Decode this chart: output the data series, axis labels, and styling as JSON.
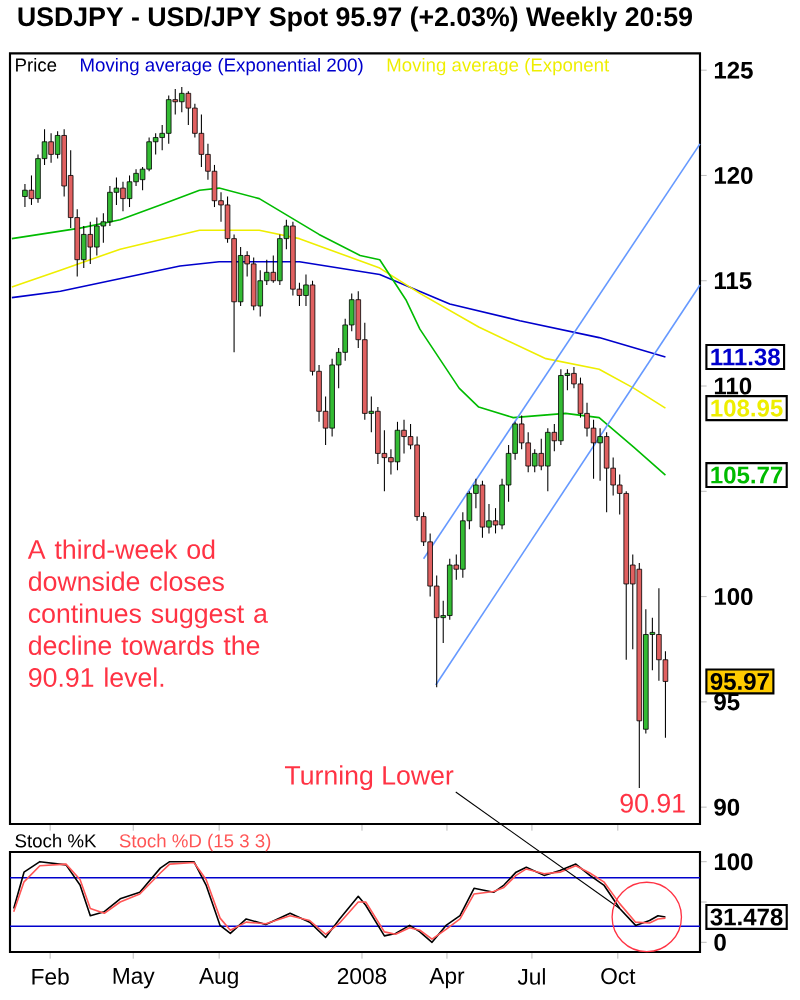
{
  "chart_data": [
    {
      "type": "candlestick",
      "title": "USDJPY - USD/JPY Spot 95.97 (+2.03%) Weekly 20:59",
      "xlim": [
        "2006-12-20",
        "2008-12-28"
      ],
      "ylim": [
        89.2,
        125.8
      ],
      "tick_labels": "y",
      "legend": "top left",
      "xticks": [
        {
          "value": "2007-02-01",
          "label": null
        },
        {
          "value": "2007-05-01",
          "label": null
        },
        {
          "value": "2007-08-01",
          "label": null
        },
        {
          "value": "2008-01-01",
          "label": null
        },
        {
          "value": "2008-04-01",
          "label": null
        },
        {
          "value": "2008-07-01",
          "label": null
        },
        {
          "value": "2008-10-01",
          "label": null
        }
      ],
      "yticks": [
        90,
        95,
        100,
        {
          "value": 105,
          "label": null
        },
        110,
        115,
        120,
        125
      ],
      "series": [
        {
          "type": "candlestick",
          "name": "Price",
          "x": [
            "2007-01-05",
            "2007-01-12",
            "2007-01-19",
            "2007-01-26",
            "2007-02-02",
            "2007-02-09",
            "2007-02-16",
            "2007-02-23",
            "2007-03-02",
            "2007-03-09",
            "2007-03-16",
            "2007-03-23",
            "2007-03-30",
            "2007-04-06",
            "2007-04-13",
            "2007-04-20",
            "2007-04-27",
            "2007-05-04",
            "2007-05-11",
            "2007-05-18",
            "2007-05-25",
            "2007-06-01",
            "2007-06-08",
            "2007-06-15",
            "2007-06-22",
            "2007-06-29",
            "2007-07-06",
            "2007-07-13",
            "2007-07-20",
            "2007-07-27",
            "2007-08-03",
            "2007-08-10",
            "2007-08-17",
            "2007-08-24",
            "2007-08-31",
            "2007-09-07",
            "2007-09-14",
            "2007-09-21",
            "2007-09-28",
            "2007-10-05",
            "2007-10-12",
            "2007-10-19",
            "2007-10-26",
            "2007-11-02",
            "2007-11-09",
            "2007-11-16",
            "2007-11-23",
            "2007-11-30",
            "2007-12-07",
            "2007-12-14",
            "2007-12-21",
            "2007-12-28",
            "2008-01-04",
            "2008-01-11",
            "2008-01-18",
            "2008-01-25",
            "2008-02-01",
            "2008-02-08",
            "2008-02-15",
            "2008-02-22",
            "2008-02-29",
            "2008-03-07",
            "2008-03-14",
            "2008-03-21",
            "2008-03-28",
            "2008-04-04",
            "2008-04-11",
            "2008-04-18",
            "2008-04-25",
            "2008-05-02",
            "2008-05-09",
            "2008-05-16",
            "2008-05-23",
            "2008-05-30",
            "2008-06-06",
            "2008-06-13",
            "2008-06-20",
            "2008-06-27",
            "2008-07-04",
            "2008-07-11",
            "2008-07-18",
            "2008-07-25",
            "2008-08-01",
            "2008-08-08",
            "2008-08-15",
            "2008-08-22",
            "2008-08-29",
            "2008-09-05",
            "2008-09-12",
            "2008-09-19",
            "2008-09-26",
            "2008-10-03",
            "2008-10-10",
            "2008-10-17",
            "2008-10-24",
            "2008-10-31",
            "2008-11-07",
            "2008-11-14",
            "2008-11-21"
          ],
          "ohlc": [
            [
              119.0,
              119.6,
              118.5,
              119.3
            ],
            [
              119.3,
              120.0,
              118.6,
              118.9
            ],
            [
              118.9,
              121.0,
              118.7,
              120.8
            ],
            [
              120.8,
              122.2,
              120.5,
              121.6
            ],
            [
              121.6,
              122.0,
              120.6,
              121.0
            ],
            [
              121.0,
              122.1,
              120.8,
              121.9
            ],
            [
              121.9,
              122.2,
              119.0,
              119.5
            ],
            [
              120.0,
              121.2,
              117.5,
              118.0
            ],
            [
              118.0,
              118.4,
              115.2,
              116.0
            ],
            [
              116.0,
              117.6,
              115.6,
              117.2
            ],
            [
              117.2,
              117.8,
              115.8,
              116.6
            ],
            [
              116.6,
              118.0,
              116.2,
              117.6
            ],
            [
              117.6,
              118.2,
              116.8,
              117.8
            ],
            [
              117.8,
              119.5,
              117.6,
              119.2
            ],
            [
              119.2,
              119.9,
              118.6,
              119.4
            ],
            [
              119.4,
              119.7,
              118.3,
              118.9
            ],
            [
              118.9,
              120.0,
              118.5,
              119.7
            ],
            [
              119.7,
              120.3,
              119.5,
              120.1
            ],
            [
              119.8,
              120.4,
              119.3,
              120.3
            ],
            [
              120.3,
              121.8,
              120.2,
              121.6
            ],
            [
              121.6,
              122.0,
              121.0,
              121.8
            ],
            [
              121.8,
              122.4,
              121.2,
              122.0
            ],
            [
              122.0,
              123.8,
              121.5,
              123.6
            ],
            [
              123.6,
              124.1,
              122.9,
              123.5
            ],
            [
              123.5,
              124.2,
              123.0,
              123.9
            ],
            [
              123.9,
              124.0,
              122.4,
              123.2
            ],
            [
              123.2,
              123.4,
              121.8,
              122.0
            ],
            [
              122.0,
              122.9,
              120.4,
              121.0
            ],
            [
              121.0,
              121.5,
              119.8,
              120.2
            ],
            [
              120.2,
              120.5,
              118.5,
              118.8
            ],
            [
              118.8,
              119.2,
              117.8,
              118.6
            ],
            [
              118.6,
              119.0,
              116.8,
              117.0
            ],
            [
              117.0,
              117.2,
              111.6,
              114.0
            ],
            [
              114.0,
              116.6,
              113.8,
              116.2
            ],
            [
              116.2,
              116.4,
              115.2,
              115.8
            ],
            [
              115.8,
              116.1,
              113.6,
              113.8
            ],
            [
              113.8,
              115.5,
              113.3,
              115.0
            ],
            [
              115.0,
              116.0,
              114.8,
              115.4
            ],
            [
              115.4,
              116.2,
              114.9,
              115.0
            ],
            [
              115.0,
              117.2,
              114.8,
              117.0
            ],
            [
              117.0,
              117.9,
              116.5,
              117.6
            ],
            [
              117.6,
              117.8,
              114.3,
              114.6
            ],
            [
              114.6,
              114.9,
              113.8,
              114.3
            ],
            [
              114.3,
              115.3,
              113.8,
              114.8
            ],
            [
              114.8,
              115.0,
              110.5,
              110.7
            ],
            [
              110.7,
              111.0,
              108.3,
              108.8
            ],
            [
              108.8,
              109.5,
              107.2,
              108.0
            ],
            [
              108.0,
              111.3,
              107.6,
              111.0
            ],
            [
              111.0,
              111.8,
              109.9,
              111.6
            ],
            [
              111.6,
              113.2,
              111.2,
              112.9
            ],
            [
              112.9,
              114.4,
              112.6,
              114.1
            ],
            [
              114.1,
              114.5,
              111.8,
              112.2
            ],
            [
              112.2,
              113.0,
              108.4,
              108.7
            ],
            [
              108.7,
              109.5,
              107.8,
              108.8
            ],
            [
              108.8,
              109.0,
              106.3,
              106.8
            ],
            [
              106.8,
              107.9,
              105.0,
              106.6
            ],
            [
              106.6,
              107.0,
              105.8,
              106.4
            ],
            [
              106.4,
              108.3,
              106.0,
              107.9
            ],
            [
              107.9,
              108.4,
              106.8,
              107.6
            ],
            [
              107.6,
              108.2,
              107.0,
              107.2
            ],
            [
              107.2,
              107.6,
              103.6,
              103.8
            ],
            [
              103.8,
              104.0,
              102.4,
              102.6
            ],
            [
              102.6,
              103.0,
              100.0,
              100.5
            ],
            [
              100.5,
              101.0,
              95.7,
              99.0
            ],
            [
              99.0,
              99.8,
              97.8,
              99.1
            ],
            [
              99.1,
              101.8,
              98.9,
              101.5
            ],
            [
              101.5,
              102.0,
              100.8,
              101.3
            ],
            [
              101.3,
              104.0,
              100.9,
              103.6
            ],
            [
              103.6,
              105.0,
              103.2,
              104.9
            ],
            [
              104.9,
              105.6,
              104.2,
              105.3
            ],
            [
              105.3,
              105.5,
              102.8,
              103.3
            ],
            [
              103.3,
              104.4,
              103.0,
              103.6
            ],
            [
              103.6,
              104.2,
              103.0,
              103.4
            ],
            [
              103.4,
              105.6,
              103.2,
              105.3
            ],
            [
              105.3,
              107.2,
              104.5,
              106.8
            ],
            [
              106.8,
              108.3,
              106.5,
              108.2
            ],
            [
              108.2,
              108.6,
              107.0,
              107.3
            ],
            [
              107.3,
              107.8,
              105.9,
              106.2
            ],
            [
              106.2,
              107.0,
              105.9,
              106.8
            ],
            [
              106.8,
              107.5,
              106.0,
              106.2
            ],
            [
              106.2,
              108.0,
              105.0,
              107.8
            ],
            [
              107.8,
              108.2,
              106.9,
              107.4
            ],
            [
              107.4,
              110.8,
              107.2,
              110.5
            ],
            [
              110.5,
              110.8,
              109.8,
              110.6
            ],
            [
              110.6,
              110.9,
              109.9,
              110.1
            ],
            [
              110.1,
              110.4,
              108.5,
              108.7
            ],
            [
              108.7,
              109.2,
              107.6,
              108.0
            ],
            [
              108.0,
              108.4,
              105.6,
              107.3
            ],
            [
              107.3,
              108.0,
              105.5,
              107.6
            ],
            [
              107.6,
              107.8,
              104.0,
              106.1
            ],
            [
              106.1,
              106.6,
              104.8,
              105.3
            ],
            [
              105.3,
              105.8,
              103.9,
              104.9
            ],
            [
              104.9,
              105.0,
              97.0,
              100.6
            ],
            [
              101.5,
              102.0,
              97.5,
              100.6
            ],
            [
              101.3,
              101.6,
              90.91,
              94.1
            ],
            [
              93.7,
              99.4,
              93.5,
              98.2
            ],
            [
              98.2,
              99.0,
              96.5,
              98.3
            ],
            [
              98.2,
              100.4,
              96.0,
              97.0
            ],
            [
              97.0,
              97.4,
              93.3,
              95.97
            ]
          ],
          "colors": [
            "#33bb33",
            "#e06060",
            "#33bb33",
            "#33bb33",
            "#e06060",
            "#33bb33",
            "#e06060",
            "#e06060",
            "#e06060",
            "#33bb33",
            "#e06060",
            "#33bb33",
            "#33bb33",
            "#33bb33",
            "#33bb33",
            "#e06060",
            "#33bb33",
            "#33bb33",
            "#33bb33",
            "#33bb33",
            "#33bb33",
            "#33bb33",
            "#33bb33",
            "#e06060",
            "#33bb33",
            "#e06060",
            "#e06060",
            "#e06060",
            "#e06060",
            "#e06060",
            "#e06060",
            "#e06060",
            "#e06060",
            "#33bb33",
            "#e06060",
            "#e06060",
            "#33bb33",
            "#33bb33",
            "#e06060",
            "#33bb33",
            "#33bb33",
            "#e06060",
            "#e06060",
            "#33bb33",
            "#e06060",
            "#e06060",
            "#e06060",
            "#33bb33",
            "#33bb33",
            "#33bb33",
            "#33bb33",
            "#e06060",
            "#e06060",
            "#33bb33",
            "#e06060",
            "#e06060",
            "#e06060",
            "#33bb33",
            "#e06060",
            "#e06060",
            "#e06060",
            "#e06060",
            "#e06060",
            "#e06060",
            "#33bb33",
            "#33bb33",
            "#e06060",
            "#33bb33",
            "#33bb33",
            "#33bb33",
            "#e06060",
            "#33bb33",
            "#e06060",
            "#33bb33",
            "#33bb33",
            "#33bb33",
            "#e06060",
            "#e06060",
            "#33bb33",
            "#e06060",
            "#33bb33",
            "#e06060",
            "#33bb33",
            "#33bb33",
            "#e06060",
            "#e06060",
            "#e06060",
            "#e06060",
            "#33bb33",
            "#e06060",
            "#e06060",
            "#e06060",
            "#e06060",
            "#e06060",
            "#e06060",
            "#33bb33",
            "#33bb33",
            "#e06060",
            "#e06060"
          ]
        },
        {
          "type": "line",
          "name": "Moving average (Exponential 200)",
          "color": "#0000cc",
          "x": [
            "2006-12-22",
            "2007-02-12",
            "2007-04-17",
            "2007-06-20",
            "2007-08-01",
            "2007-10-26",
            "2007-12-08",
            "2008-01-20",
            "2008-04-04",
            "2008-06-18",
            "2008-09-11",
            "2008-11-21"
          ],
          "values": [
            114.2,
            114.5,
            115.1,
            115.7,
            115.9,
            115.9,
            115.6,
            115.3,
            113.9,
            113.1,
            112.3,
            111.38
          ]
        },
        {
          "type": "line",
          "name": "Moving average (Exponent",
          "color": "#eeee00",
          "x": [
            "2006-12-22",
            "2007-02-12",
            "2007-04-17",
            "2007-07-11",
            "2007-09-13",
            "2007-10-26",
            "2008-01-20",
            "2008-03-03",
            "2008-05-05",
            "2008-07-16",
            "2008-09-11",
            "2008-10-18",
            "2008-11-21"
          ],
          "values": [
            114.7,
            115.5,
            116.5,
            117.4,
            117.4,
            117.0,
            115.6,
            114.4,
            112.8,
            111.3,
            110.8,
            109.9,
            108.95
          ]
        },
        {
          "type": "line",
          "color": "#00bb00",
          "x": [
            "2006-12-22",
            "2007-03-05",
            "2007-04-17",
            "2007-05-30",
            "2007-07-11",
            "2007-08-01",
            "2007-09-13",
            "2007-11-16",
            "2007-12-30",
            "2008-01-20",
            "2008-02-17",
            "2008-03-03",
            "2008-04-14",
            "2008-05-05",
            "2008-06-11",
            "2008-08-06",
            "2008-09-11",
            "2008-10-18",
            "2008-11-21"
          ],
          "values": [
            117.0,
            117.5,
            117.9,
            118.6,
            119.3,
            119.4,
            118.9,
            117.2,
            116.2,
            116.0,
            114.1,
            112.7,
            109.9,
            109.0,
            108.5,
            108.7,
            108.5,
            107.1,
            105.77
          ]
        },
        {
          "type": "line",
          "color": "#6699ff",
          "x": [
            "2008-03-07",
            "2008-12-28"
          ],
          "values": [
            101.8,
            121.5
          ]
        },
        {
          "type": "line",
          "color": "#6699ff",
          "x": [
            "2008-03-20",
            "2008-12-28"
          ],
          "values": [
            95.8,
            114.8
          ]
        }
      ],
      "annotations": [
        "A third-week od downside closes continues suggest a decline towards the 90.91 level.",
        {
          "text": "90.91",
          "x": "2008-10-24",
          "y": 90.91
        },
        {
          "text": "95.97",
          "x": "2008-11-21",
          "y": 95.97
        },
        {
          "text": "111.38",
          "x": "2008-11-21",
          "y": 111.38
        },
        {
          "text": "108.95",
          "x": "2008-11-21",
          "y": 108.95
        },
        {
          "text": "105.77",
          "x": "2008-11-21",
          "y": 105.77
        }
      ]
    },
    {
      "type": "line",
      "xlim": [
        "2006-12-20",
        "2008-12-28"
      ],
      "ylim": [
        -12,
        112
      ],
      "legend": "top left",
      "xticks": [
        {
          "value": "2007-02-01",
          "label": "Feb"
        },
        {
          "value": "2007-05-01",
          "label": "May"
        },
        {
          "value": "2007-08-01",
          "label": "Aug"
        },
        {
          "value": "2008-01-01",
          "label": "2008"
        },
        {
          "value": "2008-04-01",
          "label": "Apr"
        },
        {
          "value": "2008-07-01",
          "label": "Jul"
        },
        {
          "value": "2008-10-01",
          "label": "Oct"
        }
      ],
      "yticks": [
        0,
        {
          "value": 50,
          "label": null
        },
        100
      ],
      "x": [
        "2006-12-24",
        "2007-01-04",
        "2007-01-21",
        "2007-02-18",
        "2007-03-05",
        "2007-03-16",
        "2007-03-31",
        "2007-04-17",
        "2007-05-08",
        "2007-05-30",
        "2007-06-09",
        "2007-07-05",
        "2007-07-18",
        "2007-08-02",
        "2007-08-13",
        "2007-08-30",
        "2007-09-20",
        "2007-10-16",
        "2007-11-06",
        "2007-11-23",
        "2007-12-08",
        "2007-12-28",
        "2008-01-05",
        "2008-01-25",
        "2008-02-06",
        "2008-02-21",
        "2008-03-03",
        "2008-03-16",
        "2008-03-31",
        "2008-04-15",
        "2008-04-30",
        "2008-05-21",
        "2008-06-01",
        "2008-06-14",
        "2008-06-25",
        "2008-07-14",
        "2008-07-31",
        "2008-08-17",
        "2008-09-01",
        "2008-09-16",
        "2008-10-03",
        "2008-10-20",
        "2008-11-04",
        "2008-11-13",
        "2008-11-21"
      ],
      "series": [
        {
          "name": "Stoch %K",
          "color": "#000000",
          "values": [
            42,
            87,
            100,
            96,
            71,
            33,
            38,
            54,
            62,
            92,
            100,
            100,
            71,
            21,
            11,
            29,
            22,
            36,
            25,
            6,
            29,
            57,
            46,
            8,
            11,
            21,
            13,
            0,
            21,
            33,
            67,
            62,
            71,
            87,
            93,
            83,
            89,
            97,
            83,
            71,
            42,
            21,
            27,
            33,
            31.478
          ]
        },
        {
          "name": "Stoch %D (15 3 3)",
          "color": "#ff5555",
          "values": [
            38,
            75,
            95,
            97,
            78,
            42,
            36,
            50,
            60,
            86,
            97,
            99,
            78,
            30,
            15,
            25,
            23,
            33,
            27,
            10,
            24,
            50,
            50,
            13,
            10,
            18,
            15,
            4,
            16,
            29,
            60,
            63,
            68,
            83,
            91,
            85,
            87,
            95,
            86,
            75,
            48,
            25,
            24,
            29,
            30
          ]
        }
      ],
      "ref_lines": [
        {
          "axis": "y",
          "value": 80,
          "color": "#0000cc"
        },
        {
          "axis": "y",
          "value": 20,
          "color": "#0000cc"
        }
      ],
      "annotations": [
        {
          "text": "Turning Lower",
          "x": "2008-10-03",
          "y": 42
        },
        {
          "text": "31.478",
          "x": "2008-11-21",
          "y": 31.478
        }
      ]
    }
  ]
}
